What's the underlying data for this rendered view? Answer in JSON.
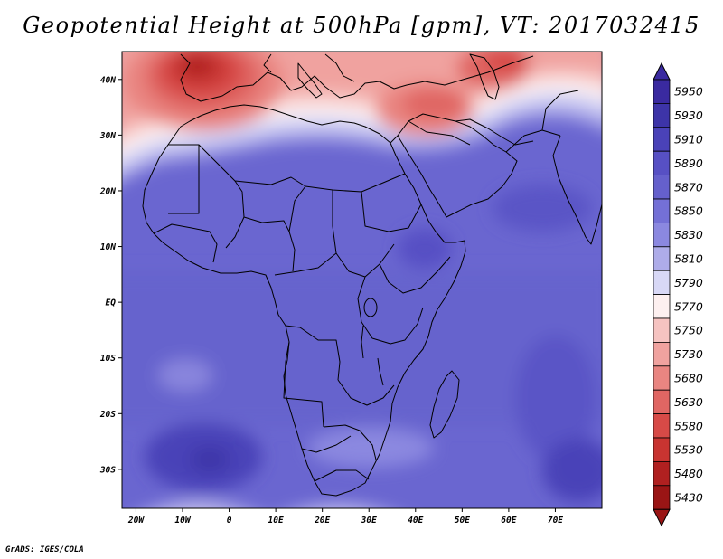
{
  "title": "Geopotential Height at 500hPa [gpm], VT: 2017032415",
  "credit": "GrADS: IGES/COLA",
  "map": {
    "field": "500hPa geopotential height",
    "units": "gpm",
    "valid_time": "2017032415",
    "lon_range": [
      -23,
      80
    ],
    "lat_range": [
      -37,
      45
    ],
    "x_ticks": [
      {
        "lon": -20,
        "label": "20W"
      },
      {
        "lon": -10,
        "label": "10W"
      },
      {
        "lon": 0,
        "label": "0"
      },
      {
        "lon": 10,
        "label": "10E"
      },
      {
        "lon": 20,
        "label": "20E"
      },
      {
        "lon": 30,
        "label": "30E"
      },
      {
        "lon": 40,
        "label": "40E"
      },
      {
        "lon": 50,
        "label": "50E"
      },
      {
        "lon": 60,
        "label": "60E"
      },
      {
        "lon": 70,
        "label": "70E"
      }
    ],
    "y_ticks": [
      {
        "lat": 40,
        "label": "40N"
      },
      {
        "lat": 30,
        "label": "30N"
      },
      {
        "lat": 20,
        "label": "20N"
      },
      {
        "lat": 10,
        "label": "10N"
      },
      {
        "lat": 0,
        "label": "EQ"
      },
      {
        "lat": -10,
        "label": "10S"
      },
      {
        "lat": -20,
        "label": "20S"
      },
      {
        "lat": -30,
        "label": "30S"
      }
    ],
    "colors": {
      "c5950": "#3a2aa0",
      "c5930": "#3d34a8",
      "c5910": "#4a42b8",
      "c5890": "#5750c4",
      "c5870": "#6560cc",
      "c5850": "#7470d6",
      "c5830": "#8b88e0",
      "c5810": "#aeace9",
      "c5790": "#d8d8f6",
      "c5770": "#fdf0f0",
      "c5750": "#f6c3c1",
      "c5730": "#f0a29f",
      "c5680": "#e98581",
      "c5630": "#e06663",
      "c5580": "#d74a47",
      "c5530": "#c83431",
      "c5480": "#b02020",
      "c5430": "#9a1515"
    }
  },
  "colorbar": {
    "levels": [
      "5950",
      "5930",
      "5910",
      "5890",
      "5870",
      "5850",
      "5830",
      "5810",
      "5790",
      "5770",
      "5750",
      "5730",
      "5680",
      "5630",
      "5580",
      "5530",
      "5480",
      "5430"
    ],
    "colors": [
      "#3a2aa0",
      "#3d34a8",
      "#4a42b8",
      "#5750c4",
      "#6560cc",
      "#7470d6",
      "#8b88e0",
      "#aeace9",
      "#d8d8f6",
      "#fdf0f0",
      "#f6c3c1",
      "#f0a29f",
      "#e98581",
      "#e06663",
      "#d74a47",
      "#c83431",
      "#b02020",
      "#9a1515"
    ]
  }
}
